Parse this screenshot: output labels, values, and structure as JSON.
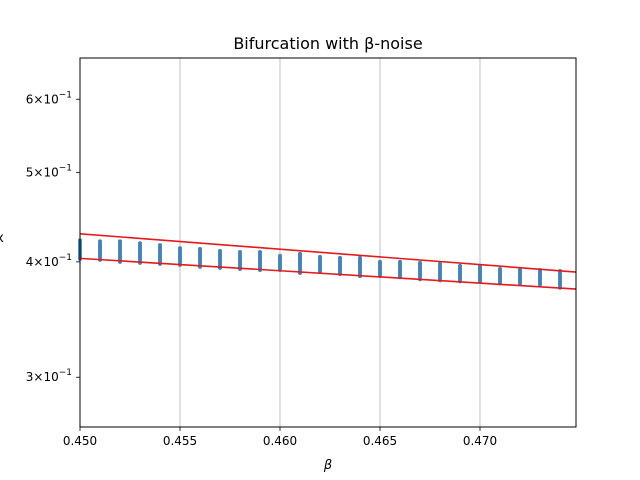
{
  "chart_data": {
    "type": "scatter",
    "title": "Bifurcation with β-noise",
    "xlabel": "β",
    "ylabel": "x",
    "xlim": [
      0.45,
      0.4748
    ],
    "ylim": [
      0.265,
      0.665
    ],
    "yscale": "log",
    "grid": "x-major",
    "x_ticks": [
      0.45,
      0.455,
      0.46,
      0.465,
      0.47
    ],
    "x_tick_labels": [
      "0.450",
      "0.455",
      "0.460",
      "0.465",
      "0.470"
    ],
    "y_ticks": [
      0.3,
      0.4,
      0.5,
      0.6
    ],
    "y_tick_labels": [
      {
        "base": "3",
        "exp": "−1"
      },
      {
        "base": "4",
        "exp": "−1"
      },
      {
        "base": "5",
        "exp": "−1"
      },
      {
        "base": "6",
        "exp": "−1"
      }
    ],
    "point_color": "#4682b4",
    "line_color": "#e41a1c",
    "series": [
      {
        "kind": "points",
        "columns": [
          {
            "x": 0.45,
            "y_min": 0.403,
            "y_max": 0.422
          },
          {
            "x": 0.451,
            "y_min": 0.402,
            "y_max": 0.421
          },
          {
            "x": 0.452,
            "y_min": 0.4,
            "y_max": 0.421
          },
          {
            "x": 0.453,
            "y_min": 0.399,
            "y_max": 0.419
          },
          {
            "x": 0.454,
            "y_min": 0.398,
            "y_max": 0.417
          },
          {
            "x": 0.455,
            "y_min": 0.397,
            "y_max": 0.414
          },
          {
            "x": 0.456,
            "y_min": 0.395,
            "y_max": 0.413
          },
          {
            "x": 0.457,
            "y_min": 0.394,
            "y_max": 0.411
          },
          {
            "x": 0.458,
            "y_min": 0.393,
            "y_max": 0.41
          },
          {
            "x": 0.459,
            "y_min": 0.392,
            "y_max": 0.41
          },
          {
            "x": 0.46,
            "y_min": 0.392,
            "y_max": 0.406
          },
          {
            "x": 0.461,
            "y_min": 0.389,
            "y_max": 0.408
          },
          {
            "x": 0.462,
            "y_min": 0.39,
            "y_max": 0.405
          },
          {
            "x": 0.463,
            "y_min": 0.388,
            "y_max": 0.404
          },
          {
            "x": 0.464,
            "y_min": 0.386,
            "y_max": 0.404
          },
          {
            "x": 0.465,
            "y_min": 0.386,
            "y_max": 0.4
          },
          {
            "x": 0.466,
            "y_min": 0.385,
            "y_max": 0.4
          },
          {
            "x": 0.467,
            "y_min": 0.383,
            "y_max": 0.399
          },
          {
            "x": 0.468,
            "y_min": 0.382,
            "y_max": 0.398
          },
          {
            "x": 0.469,
            "y_min": 0.381,
            "y_max": 0.396
          },
          {
            "x": 0.47,
            "y_min": 0.381,
            "y_max": 0.396
          },
          {
            "x": 0.471,
            "y_min": 0.379,
            "y_max": 0.393
          },
          {
            "x": 0.472,
            "y_min": 0.379,
            "y_max": 0.392
          },
          {
            "x": 0.473,
            "y_min": 0.378,
            "y_max": 0.392
          },
          {
            "x": 0.474,
            "y_min": 0.375,
            "y_max": 0.391
          }
        ]
      },
      {
        "kind": "line",
        "x": [
          0.45,
          0.4748
        ],
        "y": [
          0.429,
          0.39
        ]
      },
      {
        "kind": "line",
        "x": [
          0.45,
          0.4748
        ],
        "y": [
          0.4035,
          0.3738
        ]
      }
    ]
  }
}
